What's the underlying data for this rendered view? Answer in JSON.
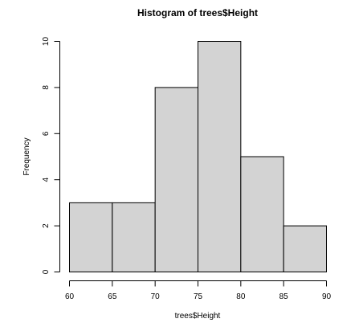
{
  "chart_data": {
    "type": "bar",
    "title": "Histogram of trees$Height",
    "xlabel": "trees$Height",
    "ylabel": "Frequency",
    "bins": [
      {
        "start": 60,
        "end": 65,
        "count": 3
      },
      {
        "start": 65,
        "end": 70,
        "count": 3
      },
      {
        "start": 70,
        "end": 75,
        "count": 8
      },
      {
        "start": 75,
        "end": 80,
        "count": 10
      },
      {
        "start": 80,
        "end": 85,
        "count": 5
      },
      {
        "start": 85,
        "end": 90,
        "count": 2
      }
    ],
    "xlim": [
      60,
      90
    ],
    "ylim": [
      0,
      10
    ],
    "xticks": [
      "60",
      "65",
      "70",
      "75",
      "80",
      "85",
      "90"
    ],
    "yticks": [
      "0",
      "2",
      "4",
      "6",
      "8",
      "10"
    ],
    "bar_color": "#d3d3d3",
    "grid": false
  }
}
